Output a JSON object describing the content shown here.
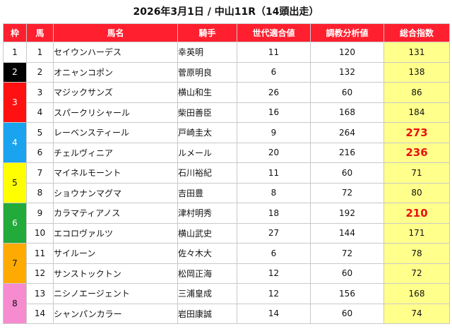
{
  "title": "2026年3月1日 / 中山11R（14頭出走）",
  "headers": [
    "枠",
    "馬",
    "馬名",
    "騎手",
    "世代適合値",
    "調教分析値",
    "総合指数"
  ],
  "colors": {
    "header": "#ff1f2e",
    "total_bg": "#ffff8c",
    "highlight_text": "#e81010",
    "waku": {
      "1": {
        "bg": "#ffffff",
        "fg": "#111111"
      },
      "2": {
        "bg": "#000000",
        "fg": "#ffffff"
      },
      "3": {
        "bg": "#ff1111",
        "fg": "#ffffff"
      },
      "4": {
        "bg": "#1aa3ee",
        "fg": "#ffffff"
      },
      "5": {
        "bg": "#ffff00",
        "fg": "#111111"
      },
      "6": {
        "bg": "#22aa3a",
        "fg": "#ffffff"
      },
      "7": {
        "bg": "#ffaa00",
        "fg": "#111111"
      },
      "8": {
        "bg": "#f78bd0",
        "fg": "#111111"
      }
    }
  },
  "rows": [
    {
      "waku": "1",
      "uma": "1",
      "name": "セイウンハーデス",
      "jockey": "幸英明",
      "gen": "11",
      "train": "120",
      "total": "131",
      "hot": false
    },
    {
      "waku": "2",
      "uma": "2",
      "name": "オニャンコポン",
      "jockey": "菅原明良",
      "gen": "6",
      "train": "132",
      "total": "138",
      "hot": false
    },
    {
      "waku": "3",
      "uma": "3",
      "name": "マジックサンズ",
      "jockey": "横山和生",
      "gen": "26",
      "train": "60",
      "total": "86",
      "hot": false
    },
    {
      "waku": "3",
      "uma": "4",
      "name": "スパークリシャール",
      "jockey": "柴田善臣",
      "gen": "16",
      "train": "168",
      "total": "184",
      "hot": false
    },
    {
      "waku": "4",
      "uma": "5",
      "name": "レーベンスティール",
      "jockey": "戸崎圭太",
      "gen": "9",
      "train": "264",
      "total": "273",
      "hot": true
    },
    {
      "waku": "4",
      "uma": "6",
      "name": "チェルヴィニア",
      "jockey": "ルメール",
      "gen": "20",
      "train": "216",
      "total": "236",
      "hot": true
    },
    {
      "waku": "5",
      "uma": "7",
      "name": "マイネルモーント",
      "jockey": "石川裕紀",
      "gen": "11",
      "train": "60",
      "total": "71",
      "hot": false
    },
    {
      "waku": "5",
      "uma": "8",
      "name": "ショウナンマグマ",
      "jockey": "吉田豊",
      "gen": "8",
      "train": "72",
      "total": "80",
      "hot": false
    },
    {
      "waku": "6",
      "uma": "9",
      "name": "カラマティアノス",
      "jockey": "津村明秀",
      "gen": "18",
      "train": "192",
      "total": "210",
      "hot": true
    },
    {
      "waku": "6",
      "uma": "10",
      "name": "エコロヴァルツ",
      "jockey": "横山武史",
      "gen": "27",
      "train": "144",
      "total": "171",
      "hot": false
    },
    {
      "waku": "7",
      "uma": "11",
      "name": "サイルーン",
      "jockey": "佐々木大",
      "gen": "6",
      "train": "72",
      "total": "78",
      "hot": false
    },
    {
      "waku": "7",
      "uma": "12",
      "name": "サンストックトン",
      "jockey": "松岡正海",
      "gen": "12",
      "train": "60",
      "total": "72",
      "hot": false
    },
    {
      "waku": "8",
      "uma": "13",
      "name": "ニシノエージェント",
      "jockey": "三浦皇成",
      "gen": "12",
      "train": "156",
      "total": "168",
      "hot": false
    },
    {
      "waku": "8",
      "uma": "14",
      "name": "シャンパンカラー",
      "jockey": "岩田康誠",
      "gen": "14",
      "train": "60",
      "total": "74",
      "hot": false
    }
  ]
}
